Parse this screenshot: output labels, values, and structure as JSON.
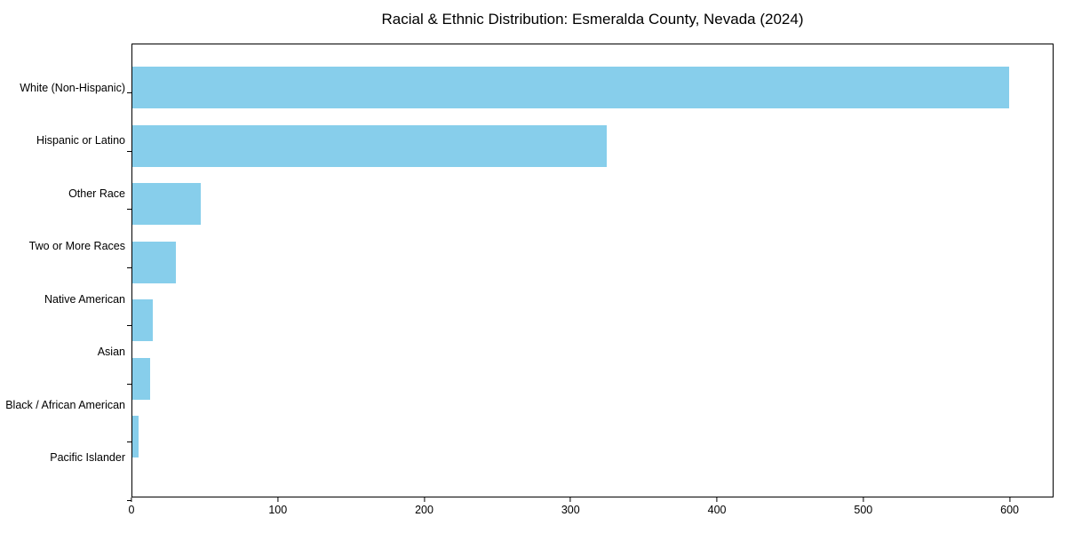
{
  "title": "Racial & Ethnic Distribution: Esmeralda County, Nevada (2024)",
  "chart_data": {
    "type": "bar",
    "orientation": "horizontal",
    "title": "Racial & Ethnic Distribution: Esmeralda County, Nevada (2024)",
    "categories": [
      "White (Non-Hispanic)",
      "Hispanic or Latino",
      "Other Race",
      "Two or More Races",
      "Native American",
      "Asian",
      "Black / African American",
      "Pacific Islander"
    ],
    "values": [
      600,
      325,
      47,
      30,
      14,
      12,
      4,
      0
    ],
    "xlabel": "",
    "ylabel": "",
    "xticks": [
      0,
      100,
      200,
      300,
      400,
      500,
      600
    ],
    "xlim": [
      0,
      630
    ],
    "grid": false,
    "legend": null,
    "bar_color": "#87CEEB",
    "axis_color": "#000000",
    "text_color": "#000000",
    "background_color": "#ffffff"
  }
}
